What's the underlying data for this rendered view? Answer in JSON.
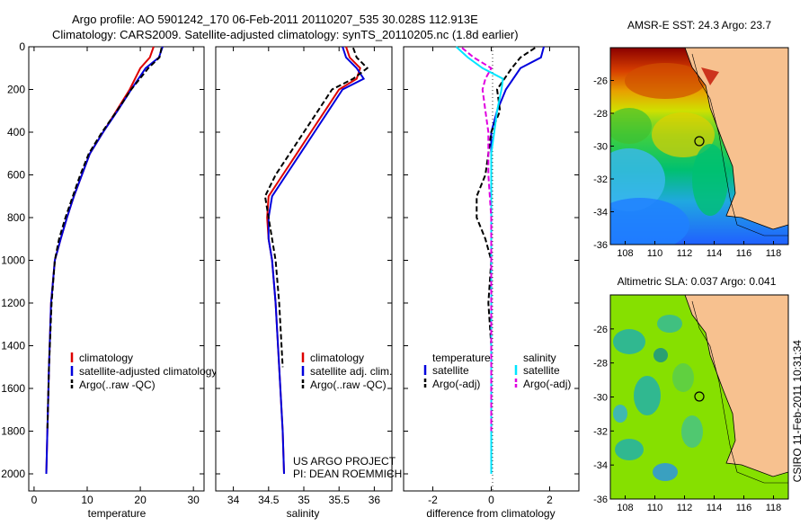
{
  "title_line1": "Argo profile: AO 5901242_170 06-Feb-2011 20110207_535 30.028S 112.913E",
  "title_line2": "Climatology: CARS2009. Satellite-adjusted climatology: synTS_20110205.nc (1.8d earlier)",
  "timestamp": "CSIRO 11-Feb-2011 10:31:34",
  "colors": {
    "clim": "#dd0000",
    "sat": "#0000dd",
    "argo": "#000000",
    "sat_sal": "#00e5ff",
    "argo_sal": "#e000e0",
    "land": "#f7c18f"
  },
  "chart_data": [
    {
      "type": "line",
      "id": "temperature",
      "xlabel": "temperature",
      "ylabel": "",
      "xlim": [
        -1,
        32
      ],
      "ylim": [
        2080,
        0
      ],
      "yreversed": true,
      "xticks": [
        0,
        10,
        20,
        30
      ],
      "xtick_labels": [
        "0",
        "10",
        "20",
        "30"
      ],
      "yticks": [
        0,
        200,
        400,
        600,
        800,
        1000,
        1200,
        1400,
        1600,
        1800,
        2000
      ],
      "ytick_labels": [
        "0",
        "200",
        "400",
        "600",
        "800",
        "1000",
        "1200",
        "1400",
        "1600",
        "1800",
        "2000"
      ],
      "legend": {
        "placement": "lower-right",
        "entries": [
          "climatology",
          "satellite-adjusted climatology",
          "Argo(..raw -QC)"
        ]
      },
      "series": [
        {
          "name": "climatology",
          "style": "solid",
          "color_key": "clim",
          "x": [
            22.5,
            21.8,
            20.0,
            18.0,
            15.5,
            13.0,
            10.5,
            9.0,
            7.5,
            6.2,
            5.0,
            3.9,
            3.2,
            2.8,
            2.5,
            2.3
          ],
          "y": [
            0,
            50,
            100,
            200,
            300,
            400,
            500,
            600,
            700,
            800,
            900,
            1000,
            1200,
            1500,
            1800,
            2000
          ]
        },
        {
          "name": "satellite-adjusted climatology",
          "style": "solid",
          "color_key": "sat",
          "x": [
            24.2,
            23.5,
            21.0,
            18.3,
            15.7,
            13.0,
            10.5,
            9.0,
            7.5,
            6.2,
            5.0,
            3.9,
            3.2,
            2.8,
            2.5,
            2.3
          ],
          "y": [
            0,
            50,
            100,
            200,
            300,
            400,
            500,
            600,
            700,
            800,
            900,
            1000,
            1200,
            1500,
            1800,
            2000
          ]
        },
        {
          "name": "Argo(..raw -QC)",
          "style": "dashed",
          "color_key": "argo",
          "x": [
            24.0,
            23.6,
            21.5,
            18.3,
            15.6,
            12.8,
            10.3,
            8.7,
            7.3,
            5.9,
            4.7,
            3.9,
            3.3,
            2.8,
            2.5
          ],
          "y": [
            5,
            50,
            100,
            200,
            300,
            400,
            500,
            600,
            700,
            800,
            900,
            1000,
            1200,
            1500,
            1800
          ]
        }
      ]
    },
    {
      "type": "line",
      "id": "salinity",
      "xlabel": "salinity",
      "ylabel": "",
      "xlim": [
        33.75,
        36.25
      ],
      "ylim": [
        2080,
        0
      ],
      "yreversed": true,
      "xticks": [
        34,
        34.5,
        35,
        35.5,
        36
      ],
      "xtick_labels": [
        "34",
        "34.5",
        "35",
        "35.5",
        "36"
      ],
      "legend": {
        "placement": "lower-right",
        "entries": [
          "climatology",
          "satellite adj. clim.",
          "Argo(..raw -QC)"
        ]
      },
      "annotation": [
        "US ARGO PROJECT",
        "PI: DEAN ROEMMICH"
      ],
      "series": [
        {
          "name": "climatology",
          "style": "solid",
          "color_key": "clim",
          "x": [
            35.6,
            35.65,
            35.8,
            35.75,
            35.5,
            35.3,
            35.1,
            34.9,
            34.7,
            34.5,
            34.48,
            34.5,
            34.55,
            34.6,
            34.65,
            34.7,
            34.72
          ],
          "y": [
            0,
            50,
            100,
            150,
            200,
            300,
            400,
            500,
            600,
            700,
            800,
            900,
            1000,
            1200,
            1500,
            1800,
            2000
          ]
        },
        {
          "name": "satellite adj. clim.",
          "style": "solid",
          "color_key": "sat",
          "x": [
            35.55,
            35.6,
            35.75,
            35.85,
            35.55,
            35.35,
            35.15,
            34.95,
            34.75,
            34.55,
            34.5,
            34.5,
            34.55,
            34.6,
            34.65,
            34.7,
            34.72
          ],
          "y": [
            0,
            50,
            100,
            150,
            200,
            300,
            400,
            500,
            600,
            700,
            800,
            900,
            1000,
            1200,
            1500,
            1800,
            2000
          ]
        },
        {
          "name": "Argo(..raw -QC)",
          "style": "dashed",
          "color_key": "argo",
          "x": [
            35.7,
            35.75,
            35.9,
            35.7,
            35.4,
            35.2,
            35.0,
            34.8,
            34.6,
            34.45,
            34.5,
            34.55,
            34.6,
            34.65,
            34.7
          ],
          "y": [
            5,
            50,
            100,
            150,
            200,
            300,
            400,
            500,
            600,
            700,
            800,
            900,
            1000,
            1200,
            1500
          ]
        }
      ]
    },
    {
      "type": "line",
      "id": "difference",
      "xlabel": "difference from climatology",
      "ylabel": "",
      "xlim": [
        -3,
        3
      ],
      "ylim": [
        2080,
        0
      ],
      "yreversed": true,
      "xticks": [
        -2,
        0,
        2
      ],
      "xtick_labels": [
        "-2",
        "0",
        "2"
      ],
      "legend": {
        "placement": "lower-center",
        "group_headers": [
          "temperature",
          "salinity"
        ],
        "entries": [
          "satellite",
          "Argo(-adj)",
          "satellite",
          "Argo(-adj)"
        ]
      },
      "series": [
        {
          "name": "temperature satellite",
          "style": "solid",
          "color_key": "sat",
          "x": [
            1.8,
            1.7,
            1.0,
            0.5,
            0.2,
            0.0,
            0.0,
            0.0,
            0.0,
            0.0,
            0.0,
            0.0,
            0.0,
            0.0,
            0.0
          ],
          "y": [
            0,
            50,
            100,
            200,
            300,
            400,
            500,
            600,
            700,
            800,
            900,
            1000,
            1200,
            1500,
            2000
          ]
        },
        {
          "name": "temperature Argo(-adj)",
          "style": "dashed",
          "color_key": "argo",
          "x": [
            1.5,
            1.0,
            0.7,
            0.2,
            0.3,
            0.0,
            -0.1,
            -0.2,
            -0.5,
            -0.5,
            -0.2,
            0.0,
            -0.1,
            0.0,
            0.0
          ],
          "y": [
            5,
            50,
            100,
            200,
            300,
            400,
            500,
            600,
            700,
            800,
            900,
            1000,
            1200,
            1400,
            1800
          ]
        },
        {
          "name": "salinity satellite",
          "style": "solid",
          "color_key": "sat_sal",
          "x": [
            -1.2,
            -0.8,
            -0.3,
            0.4,
            0.35,
            0.2,
            0.1,
            0.0,
            0.0,
            0.0,
            0.0,
            0.0
          ],
          "y": [
            0,
            50,
            100,
            150,
            200,
            300,
            400,
            500,
            600,
            800,
            1200,
            2000
          ]
        },
        {
          "name": "salinity Argo(-adj)",
          "style": "dashed",
          "color_key": "argo_sal",
          "x": [
            -1.0,
            -0.6,
            0.0,
            -0.2,
            -0.3,
            -0.2,
            -0.1,
            -0.1,
            0.0,
            0.0,
            0.0
          ],
          "y": [
            5,
            50,
            100,
            150,
            200,
            300,
            400,
            600,
            800,
            1200,
            1800
          ]
        }
      ]
    },
    {
      "type": "heatmap",
      "id": "sst_map",
      "title": "AMSR-E SST: 24.3 Argo: 23.7",
      "xlim": [
        107,
        119
      ],
      "ylim": [
        -36,
        -24
      ],
      "xticks": [
        108,
        110,
        112,
        114,
        116,
        118
      ],
      "xtick_labels": [
        "108",
        "110",
        "112",
        "114",
        "116",
        "118"
      ],
      "yticks": [
        -36,
        -34,
        -32,
        -30,
        -28,
        -26
      ],
      "ytick_labels": [
        "-36",
        "-34",
        "-32",
        "-30",
        "-28",
        "-26"
      ],
      "marker": {
        "lon": 112.913,
        "lat": -30.028
      }
    },
    {
      "type": "heatmap",
      "id": "sla_map",
      "title": "Altimetric SLA: 0.037 Argo: 0.041",
      "xlim": [
        107,
        119
      ],
      "ylim": [
        -36,
        -24
      ],
      "xticks": [
        108,
        110,
        112,
        114,
        116,
        118
      ],
      "xtick_labels": [
        "108",
        "110",
        "112",
        "114",
        "116",
        "118"
      ],
      "yticks": [
        -36,
        -34,
        -32,
        -30,
        -28,
        -26
      ],
      "ytick_labels": [
        "-36",
        "-34",
        "-32",
        "-30",
        "-28",
        "-26"
      ],
      "marker": {
        "lon": 112.913,
        "lat": -30.028
      }
    }
  ]
}
